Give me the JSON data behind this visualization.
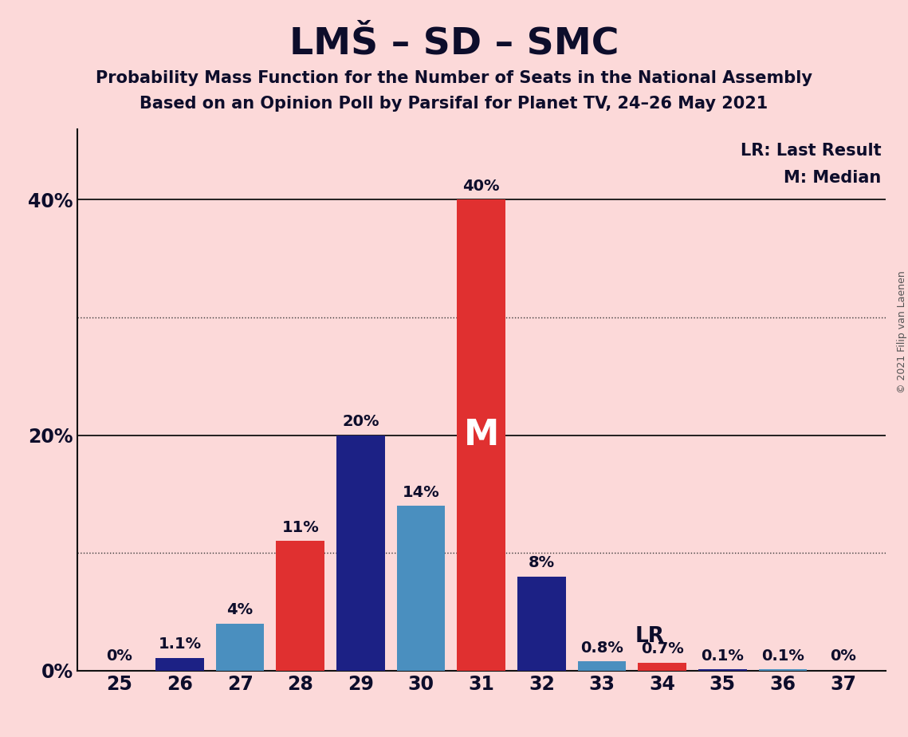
{
  "title": "LMŠ – SD – SMC",
  "subtitle1": "Probability Mass Function for the Number of Seats in the National Assembly",
  "subtitle2": "Based on an Opinion Poll by Parsifal for Planet TV, 24–26 May 2021",
  "copyright": "© 2021 Filip van Laenen",
  "seats": [
    25,
    26,
    27,
    28,
    29,
    30,
    31,
    32,
    33,
    34,
    35,
    36,
    37
  ],
  "values": [
    0.0,
    1.1,
    4.0,
    11.0,
    20.0,
    14.0,
    40.0,
    8.0,
    0.8,
    0.7,
    0.1,
    0.1,
    0.0
  ],
  "bar_colors": [
    "#1c2185",
    "#1c2185",
    "#4a8fbf",
    "#e03030",
    "#1c2185",
    "#4a8fbf",
    "#e03030",
    "#1c2185",
    "#4a8fbf",
    "#e03030",
    "#1c2185",
    "#4a8fbf",
    "#1c2185"
  ],
  "labels": [
    "0%",
    "1.1%",
    "4%",
    "11%",
    "20%",
    "14%",
    "40%",
    "8%",
    "0.8%",
    "0.7%",
    "0.1%",
    "0.1%",
    "0%"
  ],
  "median_seat": 31,
  "last_result_seat": 33,
  "background_color": "#fcd9d9",
  "major_yticks": [
    0,
    20,
    40
  ],
  "minor_yticks": [
    10,
    30
  ],
  "ylim": [
    0,
    46
  ],
  "xlim": [
    24.3,
    37.7
  ],
  "title_color": "#0d0d2b",
  "legend_lr": "LR: Last Result",
  "legend_m": "M: Median",
  "title_fontsize": 34,
  "subtitle_fontsize": 15,
  "tick_fontsize": 17,
  "label_fontsize": 14,
  "bar_width": 0.8
}
